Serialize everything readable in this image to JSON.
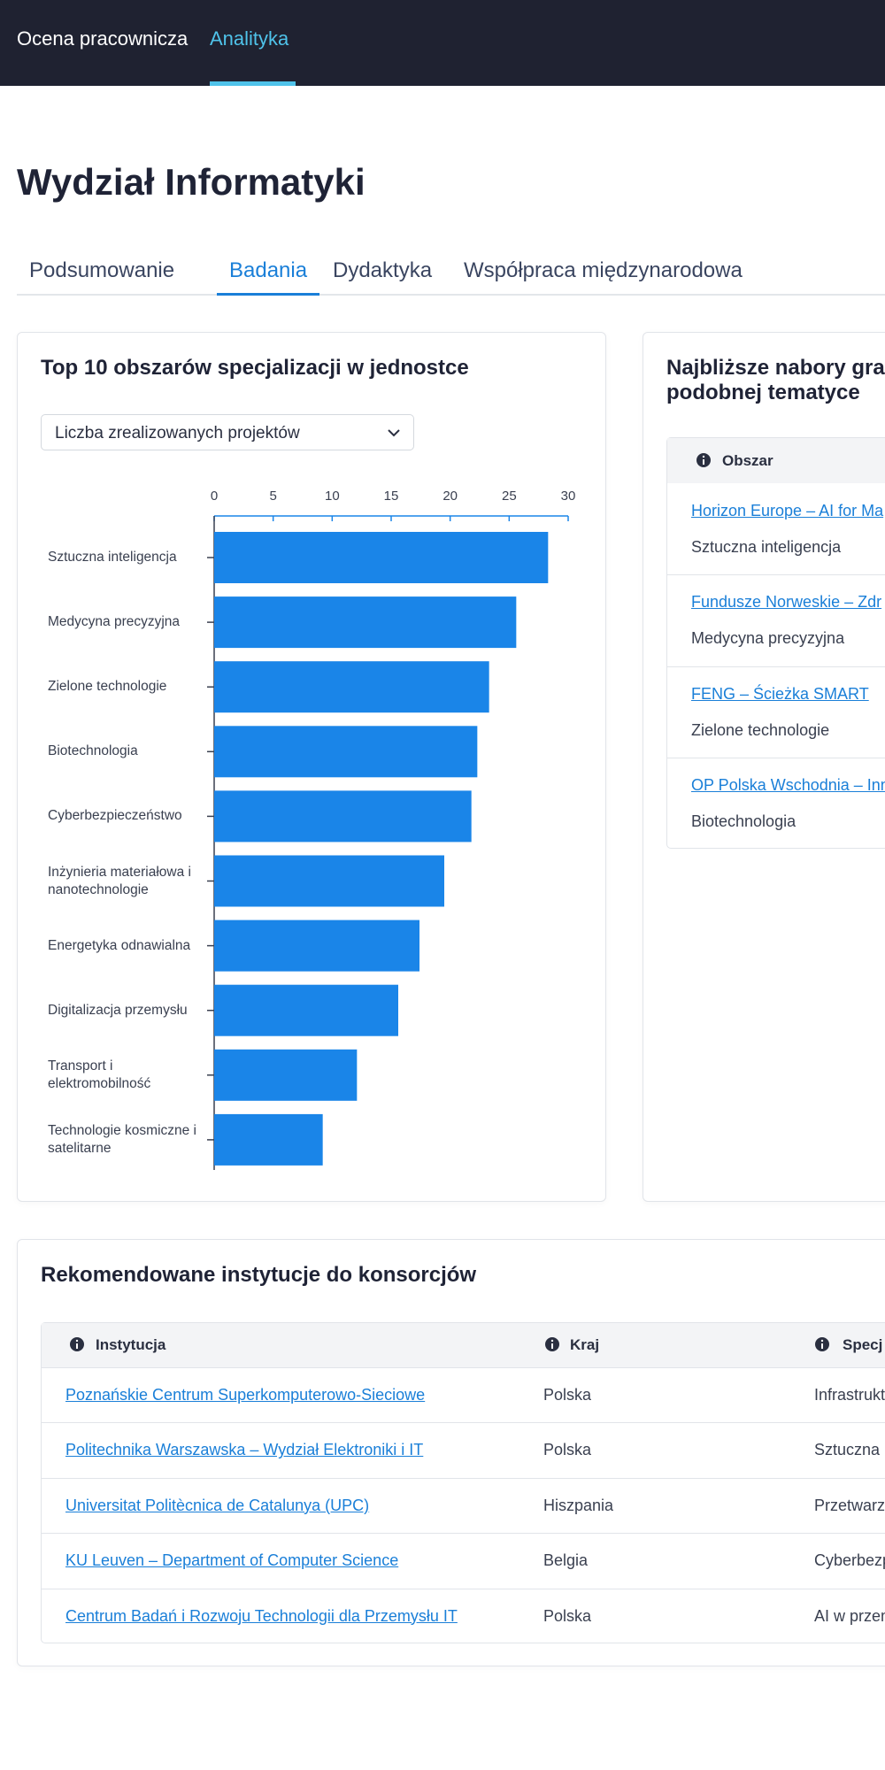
{
  "nav": {
    "brand": "Ocena pracownicza",
    "active": "Analityka"
  },
  "page_title": "Wydział Informatyki",
  "tabs": {
    "items": [
      "Podsumowanie",
      "Badania",
      "Dydaktyka",
      "Współpraca międzynarodowa"
    ],
    "active": 1
  },
  "specializations": {
    "title": "Top 10 obszarów specjalizacji w jednostce",
    "dropdown": "Liczba zrealizowanych projektów",
    "chart_data": {
      "type": "bar",
      "orientation": "horizontal",
      "color": "#1a85e8",
      "categories": [
        "Sztuczna inteligencja",
        "Medycyna precyzyjna",
        "Zielone technologie",
        "Biotechnologia",
        "Cyberbezpieczeństwo",
        "Inżynieria materiałowa i nanotechnologie",
        "Energetyka odnawialna",
        "Digitalizacja przemysłu",
        "Transport i elektromobilność",
        "Technologie kosmiczne i satelitarne"
      ],
      "values": [
        28.3,
        25.6,
        23.3,
        22.3,
        21.8,
        19.5,
        17.4,
        15.6,
        12.1,
        9.2
      ],
      "xlim": [
        0,
        30
      ],
      "xticks": [
        0,
        5,
        10,
        15,
        20,
        25,
        30
      ]
    }
  },
  "grants": {
    "title_lines": [
      "Najbliższe nabory gra",
      "podobnej tematyce"
    ],
    "header": "Obszar",
    "rows": [
      {
        "link": "Horizon Europe – AI for Ma",
        "area": "Sztuczna inteligencja"
      },
      {
        "link": "Fundusze Norweskie – Zdr",
        "area": "Medycyna precyzyjna"
      },
      {
        "link": "FENG – Ścieżka SMART",
        "area": "Zielone technologie"
      },
      {
        "link": "OP Polska Wschodnia – Inn",
        "area": "Biotechnologia"
      }
    ]
  },
  "institutions": {
    "title": "Rekomendowane instytucje do konsorcjów",
    "headers": [
      "Instytucja",
      "Kraj",
      "Specj"
    ],
    "rows": [
      [
        "Poznańskie Centrum Superkomputerowo-Sieciowe",
        "Polska",
        "Infrastrukt"
      ],
      [
        "Politechnika Warszawska – Wydział Elektroniki i IT",
        "Polska",
        "Sztuczna i"
      ],
      [
        "Universitat Politècnica de Catalunya (UPC)",
        "Hiszpania",
        "Przetwarz"
      ],
      [
        "KU Leuven – Department of Computer Science",
        "Belgia",
        "Cyberbezp"
      ],
      [
        "Centrum Badań i Rozwoju Technologii dla Przemysłu IT",
        "Polska",
        "AI w przem"
      ]
    ]
  }
}
